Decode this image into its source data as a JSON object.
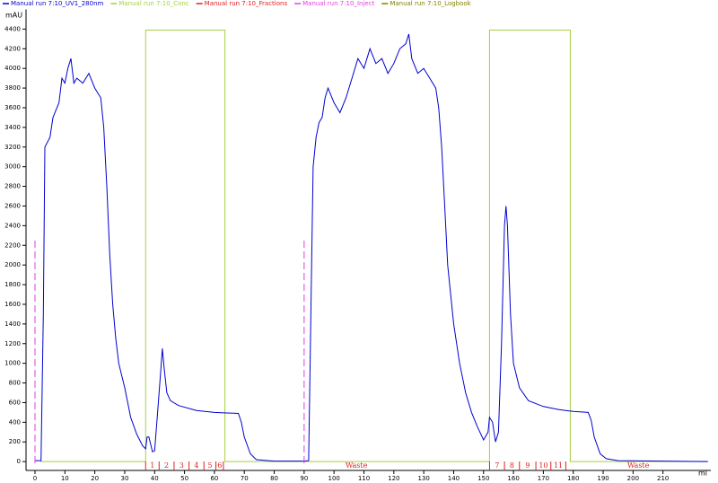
{
  "chart_data": {
    "type": "line",
    "y_label": "mAU",
    "x_label": "ml",
    "xlim": [
      -3,
      226
    ],
    "ylim": [
      -90,
      4600
    ],
    "xticks": [
      0,
      10,
      20,
      30,
      40,
      50,
      60,
      70,
      80,
      90,
      100,
      110,
      120,
      130,
      140,
      150,
      160,
      170,
      180,
      190,
      200,
      210
    ],
    "yticks": [
      0,
      200,
      400,
      600,
      800,
      1000,
      1200,
      1400,
      1600,
      1800,
      2000,
      2200,
      2400,
      2600,
      2800,
      3000,
      3200,
      3400,
      3600,
      3800,
      4000,
      4200,
      4400
    ],
    "series": [
      {
        "name": "Manual run 7:10_UV1_280nm",
        "color": "#0000d0",
        "x": [
          0,
          2,
          2.8,
          3.3,
          5,
          6,
          8,
          9,
          10,
          11,
          12,
          13,
          14,
          16,
          18,
          20,
          22,
          23,
          24,
          25,
          26,
          27,
          28,
          30,
          32,
          34,
          36,
          37,
          37.5,
          38.1,
          39.3,
          40,
          41,
          42,
          42.6,
          43.2,
          44.1,
          45.3,
          48,
          54,
          60,
          68,
          69,
          70,
          72,
          74,
          80,
          90,
          91.5,
          92.5,
          93,
          94,
          95,
          96,
          97,
          98,
          100,
          102,
          104,
          106,
          108,
          110,
          112,
          114,
          116,
          118,
          120,
          122,
          124,
          125,
          126,
          128,
          130,
          132,
          134,
          135,
          136,
          137,
          138,
          140,
          142,
          144,
          146,
          148,
          150,
          151.5,
          152,
          153,
          154,
          155,
          156,
          157,
          157.5,
          158,
          159,
          160,
          162,
          165,
          170,
          175,
          180,
          185,
          186,
          187,
          189,
          191,
          195,
          225
        ],
        "values": [
          10,
          10,
          1500,
          3200,
          3300,
          3500,
          3650,
          3900,
          3850,
          4000,
          4100,
          3850,
          3900,
          3850,
          3950,
          3800,
          3700,
          3400,
          2800,
          2100,
          1600,
          1250,
          1000,
          750,
          450,
          280,
          160,
          130,
          250,
          250,
          100,
          110,
          500,
          900,
          1150,
          950,
          700,
          620,
          570,
          520,
          500,
          490,
          400,
          250,
          80,
          20,
          5,
          5,
          10,
          2000,
          3000,
          3300,
          3450,
          3500,
          3700,
          3800,
          3650,
          3550,
          3700,
          3900,
          4100,
          4000,
          4200,
          4050,
          4100,
          3950,
          4050,
          4200,
          4250,
          4350,
          4100,
          3950,
          4000,
          3900,
          3800,
          3600,
          3200,
          2600,
          2000,
          1400,
          1000,
          700,
          500,
          350,
          220,
          300,
          450,
          400,
          200,
          300,
          1200,
          2400,
          2600,
          2400,
          1500,
          1000,
          750,
          620,
          560,
          530,
          510,
          500,
          420,
          250,
          80,
          30,
          10,
          0
        ]
      },
      {
        "name": "Manual run 7:10_Conc",
        "color": "#a8d040",
        "x": [
          1.8,
          37,
          37,
          63.5,
          63.5,
          152,
          152,
          179,
          179,
          225
        ],
        "values": [
          0,
          0,
          4390,
          4390,
          0,
          0,
          4390,
          4390,
          0,
          0
        ]
      }
    ],
    "fractions": {
      "name": "Manual run 7:10_Fractions",
      "color": "#e02020",
      "x": [
        37,
        41.5,
        46.5,
        51.5,
        56.5,
        60.5,
        63,
        152,
        157,
        162,
        167.5,
        172.5,
        177.5
      ],
      "labels": [
        "1",
        "2",
        "3",
        "4",
        "5",
        "6",
        "Waste",
        "7",
        "8",
        "9",
        "10",
        "11",
        "Waste"
      ]
    },
    "injections": {
      "name": "Manual run 7:10_Inject",
      "color": "#e040e0",
      "x": [
        0,
        90
      ],
      "values": [
        2250,
        2250
      ]
    },
    "logbook": {
      "name": "Manual run 7:10_Logbook",
      "color": "#808000"
    }
  }
}
